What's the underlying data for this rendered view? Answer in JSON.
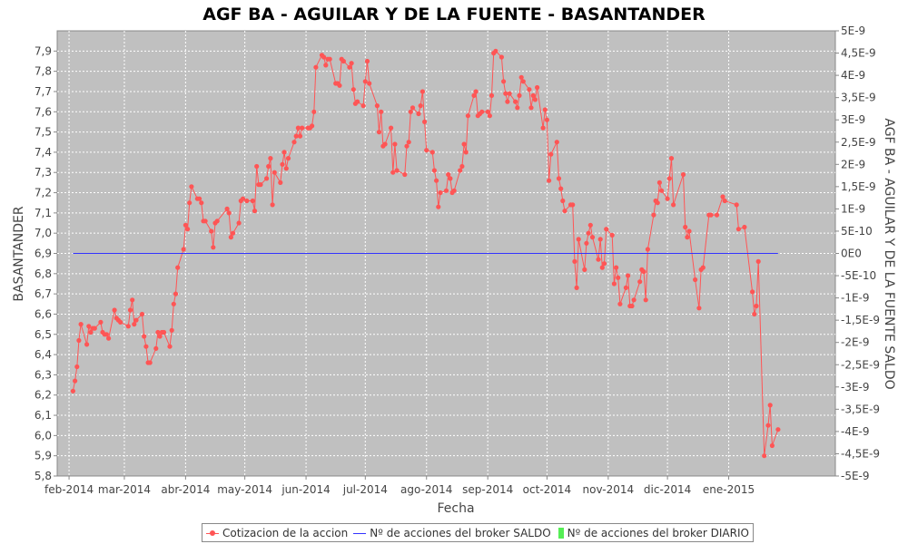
{
  "chart_data": {
    "type": "line",
    "title": "AGF BA - AGUILAR Y DE LA FUENTE - BASANTANDER",
    "xlabel": "Fecha",
    "ylabel": "BASANTANDER",
    "y2label": "AGF BA - AGUILAR Y DE LA FUENTE SALDO",
    "ylim": [
      5.8,
      8.0
    ],
    "y2lim": [
      -5e-09,
      5e-09
    ],
    "xlim": [
      "2014-01-26",
      "2015-02-24"
    ],
    "grid": true,
    "legend_position": "bottom",
    "x_ticks": [
      {
        "date": "2014-02-01",
        "label": "feb-2014"
      },
      {
        "date": "2014-03-01",
        "label": "mar-2014"
      },
      {
        "date": "2014-04-01",
        "label": "abr-2014"
      },
      {
        "date": "2014-05-01",
        "label": "may-2014"
      },
      {
        "date": "2014-06-01",
        "label": "jun-2014"
      },
      {
        "date": "2014-07-01",
        "label": "jul-2014"
      },
      {
        "date": "2014-08-01",
        "label": "ago-2014"
      },
      {
        "date": "2014-09-01",
        "label": "sep-2014"
      },
      {
        "date": "2014-10-01",
        "label": "oct-2014"
      },
      {
        "date": "2014-11-01",
        "label": "nov-2014"
      },
      {
        "date": "2014-12-01",
        "label": "dic-2014"
      },
      {
        "date": "2015-01-01",
        "label": "ene-2015"
      }
    ],
    "y_ticks": [
      "7,9",
      "7,8",
      "7,7",
      "7,6",
      "7,5",
      "7,4",
      "7,3",
      "7,2",
      "7,1",
      "7,0",
      "6,9",
      "6,8",
      "6,7",
      "6,6",
      "6,5",
      "6,4",
      "6,3",
      "6,2",
      "6,1",
      "6,0",
      "5,9",
      "5,8"
    ],
    "y2_ticks": [
      "5E-9",
      "4,5E-9",
      "4E-9",
      "3,5E-9",
      "3E-9",
      "2,5E-9",
      "2E-9",
      "1,5E-9",
      "1E-9",
      "5E-10",
      "0E0",
      "-5E-10",
      "-1E-9",
      "-1,5E-9",
      "-2E-9",
      "-2,5E-9",
      "-3E-9",
      "-3,5E-9",
      "-4E-9",
      "-4,5E-9",
      "-5E-9"
    ],
    "series": [
      {
        "name": "Cotizacion de la accion",
        "color": "#ff5555",
        "axis": "left",
        "points": [
          [
            "2014-02-03",
            6.22
          ],
          [
            "2014-02-04",
            6.27
          ],
          [
            "2014-02-05",
            6.34
          ],
          [
            "2014-02-06",
            6.47
          ],
          [
            "2014-02-07",
            6.55
          ],
          [
            "2014-02-10",
            6.45
          ],
          [
            "2014-02-11",
            6.54
          ],
          [
            "2014-02-12",
            6.51
          ],
          [
            "2014-02-13",
            6.53
          ],
          [
            "2014-02-14",
            6.53
          ],
          [
            "2014-02-17",
            6.56
          ],
          [
            "2014-02-18",
            6.51
          ],
          [
            "2014-02-19",
            6.5
          ],
          [
            "2014-02-20",
            6.5
          ],
          [
            "2014-02-21",
            6.48
          ],
          [
            "2014-02-24",
            6.62
          ],
          [
            "2014-02-25",
            6.58
          ],
          [
            "2014-02-26",
            6.57
          ],
          [
            "2014-02-27",
            6.56
          ],
          [
            "2014-03-03",
            6.54
          ],
          [
            "2014-03-04",
            6.62
          ],
          [
            "2014-03-05",
            6.67
          ],
          [
            "2014-03-06",
            6.55
          ],
          [
            "2014-03-07",
            6.57
          ],
          [
            "2014-03-10",
            6.6
          ],
          [
            "2014-03-11",
            6.49
          ],
          [
            "2014-03-12",
            6.44
          ],
          [
            "2014-03-13",
            6.36
          ],
          [
            "2014-03-14",
            6.36
          ],
          [
            "2014-03-17",
            6.43
          ],
          [
            "2014-03-18",
            6.51
          ],
          [
            "2014-03-19",
            6.49
          ],
          [
            "2014-03-20",
            6.51
          ],
          [
            "2014-03-21",
            6.51
          ],
          [
            "2014-03-24",
            6.44
          ],
          [
            "2014-03-25",
            6.52
          ],
          [
            "2014-03-26",
            6.65
          ],
          [
            "2014-03-27",
            6.7
          ],
          [
            "2014-03-28",
            6.83
          ],
          [
            "2014-03-31",
            6.92
          ],
          [
            "2014-04-01",
            7.04
          ],
          [
            "2014-04-02",
            7.02
          ],
          [
            "2014-04-03",
            7.15
          ],
          [
            "2014-04-04",
            7.23
          ],
          [
            "2014-04-07",
            7.17
          ],
          [
            "2014-04-08",
            7.17
          ],
          [
            "2014-04-09",
            7.15
          ],
          [
            "2014-04-10",
            7.06
          ],
          [
            "2014-04-11",
            7.06
          ],
          [
            "2014-04-14",
            7.01
          ],
          [
            "2014-04-15",
            6.93
          ],
          [
            "2014-04-16",
            7.05
          ],
          [
            "2014-04-17",
            7.06
          ],
          [
            "2014-04-22",
            7.12
          ],
          [
            "2014-04-23",
            7.1
          ],
          [
            "2014-04-24",
            6.98
          ],
          [
            "2014-04-25",
            7.0
          ],
          [
            "2014-04-28",
            7.05
          ],
          [
            "2014-04-29",
            7.16
          ],
          [
            "2014-04-30",
            7.17
          ],
          [
            "2014-05-02",
            7.16
          ],
          [
            "2014-05-05",
            7.16
          ],
          [
            "2014-05-06",
            7.11
          ],
          [
            "2014-05-07",
            7.33
          ],
          [
            "2014-05-08",
            7.24
          ],
          [
            "2014-05-09",
            7.24
          ],
          [
            "2014-05-12",
            7.27
          ],
          [
            "2014-05-13",
            7.33
          ],
          [
            "2014-05-14",
            7.37
          ],
          [
            "2014-05-15",
            7.14
          ],
          [
            "2014-05-16",
            7.3
          ],
          [
            "2014-05-19",
            7.25
          ],
          [
            "2014-05-20",
            7.34
          ],
          [
            "2014-05-21",
            7.4
          ],
          [
            "2014-05-22",
            7.32
          ],
          [
            "2014-05-23",
            7.37
          ],
          [
            "2014-05-26",
            7.45
          ],
          [
            "2014-05-27",
            7.48
          ],
          [
            "2014-05-28",
            7.52
          ],
          [
            "2014-05-29",
            7.48
          ],
          [
            "2014-05-30",
            7.52
          ],
          [
            "2014-06-02",
            7.52
          ],
          [
            "2014-06-03",
            7.52
          ],
          [
            "2014-06-04",
            7.53
          ],
          [
            "2014-06-05",
            7.6
          ],
          [
            "2014-06-06",
            7.82
          ],
          [
            "2014-06-09",
            7.88
          ],
          [
            "2014-06-10",
            7.87
          ],
          [
            "2014-06-11",
            7.83
          ],
          [
            "2014-06-12",
            7.86
          ],
          [
            "2014-06-13",
            7.86
          ],
          [
            "2014-06-16",
            7.74
          ],
          [
            "2014-06-17",
            7.74
          ],
          [
            "2014-06-18",
            7.73
          ],
          [
            "2014-06-19",
            7.86
          ],
          [
            "2014-06-20",
            7.85
          ],
          [
            "2014-06-23",
            7.82
          ],
          [
            "2014-06-24",
            7.84
          ],
          [
            "2014-06-25",
            7.71
          ],
          [
            "2014-06-26",
            7.64
          ],
          [
            "2014-06-27",
            7.65
          ],
          [
            "2014-06-30",
            7.63
          ],
          [
            "2014-07-01",
            7.75
          ],
          [
            "2014-07-02",
            7.85
          ],
          [
            "2014-07-03",
            7.74
          ],
          [
            "2014-07-07",
            7.63
          ],
          [
            "2014-07-08",
            7.5
          ],
          [
            "2014-07-09",
            7.6
          ],
          [
            "2014-07-10",
            7.43
          ],
          [
            "2014-07-11",
            7.44
          ],
          [
            "2014-07-14",
            7.52
          ],
          [
            "2014-07-15",
            7.3
          ],
          [
            "2014-07-16",
            7.44
          ],
          [
            "2014-07-17",
            7.31
          ],
          [
            "2014-07-21",
            7.29
          ],
          [
            "2014-07-22",
            7.43
          ],
          [
            "2014-07-23",
            7.45
          ],
          [
            "2014-07-24",
            7.6
          ],
          [
            "2014-07-25",
            7.62
          ],
          [
            "2014-07-28",
            7.59
          ],
          [
            "2014-07-29",
            7.63
          ],
          [
            "2014-07-30",
            7.7
          ],
          [
            "2014-07-31",
            7.55
          ],
          [
            "2014-08-01",
            7.41
          ],
          [
            "2014-08-04",
            7.4
          ],
          [
            "2014-08-05",
            7.31
          ],
          [
            "2014-08-06",
            7.26
          ],
          [
            "2014-08-07",
            7.13
          ],
          [
            "2014-08-08",
            7.2
          ],
          [
            "2014-08-11",
            7.21
          ],
          [
            "2014-08-12",
            7.29
          ],
          [
            "2014-08-13",
            7.27
          ],
          [
            "2014-08-14",
            7.2
          ],
          [
            "2014-08-15",
            7.21
          ],
          [
            "2014-08-18",
            7.31
          ],
          [
            "2014-08-19",
            7.33
          ],
          [
            "2014-08-20",
            7.44
          ],
          [
            "2014-08-21",
            7.4
          ],
          [
            "2014-08-22",
            7.58
          ],
          [
            "2014-08-25",
            7.68
          ],
          [
            "2014-08-26",
            7.7
          ],
          [
            "2014-08-27",
            7.58
          ],
          [
            "2014-08-28",
            7.59
          ],
          [
            "2014-08-29",
            7.6
          ],
          [
            "2014-09-01",
            7.6
          ],
          [
            "2014-09-02",
            7.58
          ],
          [
            "2014-09-03",
            7.68
          ],
          [
            "2014-09-04",
            7.89
          ],
          [
            "2014-09-05",
            7.9
          ],
          [
            "2014-09-08",
            7.87
          ],
          [
            "2014-09-09",
            7.75
          ],
          [
            "2014-09-10",
            7.69
          ],
          [
            "2014-09-11",
            7.65
          ],
          [
            "2014-09-12",
            7.69
          ],
          [
            "2014-09-15",
            7.65
          ],
          [
            "2014-09-16",
            7.62
          ],
          [
            "2014-09-17",
            7.68
          ],
          [
            "2014-09-18",
            7.77
          ],
          [
            "2014-09-19",
            7.75
          ],
          [
            "2014-09-22",
            7.71
          ],
          [
            "2014-09-23",
            7.62
          ],
          [
            "2014-09-24",
            7.68
          ],
          [
            "2014-09-25",
            7.66
          ],
          [
            "2014-09-26",
            7.72
          ],
          [
            "2014-09-29",
            7.52
          ],
          [
            "2014-09-30",
            7.61
          ],
          [
            "2014-10-01",
            7.56
          ],
          [
            "2014-10-02",
            7.26
          ],
          [
            "2014-10-03",
            7.39
          ],
          [
            "2014-10-06",
            7.45
          ],
          [
            "2014-10-07",
            7.27
          ],
          [
            "2014-10-08",
            7.22
          ],
          [
            "2014-10-09",
            7.16
          ],
          [
            "2014-10-10",
            7.11
          ],
          [
            "2014-10-13",
            7.14
          ],
          [
            "2014-10-14",
            7.14
          ],
          [
            "2014-10-15",
            6.86
          ],
          [
            "2014-10-16",
            6.73
          ],
          [
            "2014-10-17",
            6.97
          ],
          [
            "2014-10-20",
            6.82
          ],
          [
            "2014-10-21",
            6.95
          ],
          [
            "2014-10-22",
            7.0
          ],
          [
            "2014-10-23",
            7.04
          ],
          [
            "2014-10-24",
            6.98
          ],
          [
            "2014-10-27",
            6.87
          ],
          [
            "2014-10-28",
            6.97
          ],
          [
            "2014-10-29",
            6.83
          ],
          [
            "2014-10-30",
            6.85
          ],
          [
            "2014-10-31",
            7.02
          ],
          [
            "2014-11-03",
            6.99
          ],
          [
            "2014-11-04",
            6.75
          ],
          [
            "2014-11-05",
            6.83
          ],
          [
            "2014-11-06",
            6.78
          ],
          [
            "2014-11-07",
            6.65
          ],
          [
            "2014-11-10",
            6.73
          ],
          [
            "2014-11-11",
            6.79
          ],
          [
            "2014-11-12",
            6.64
          ],
          [
            "2014-11-13",
            6.64
          ],
          [
            "2014-11-14",
            6.67
          ],
          [
            "2014-11-17",
            6.76
          ],
          [
            "2014-11-18",
            6.82
          ],
          [
            "2014-11-19",
            6.81
          ],
          [
            "2014-11-20",
            6.67
          ],
          [
            "2014-11-21",
            6.92
          ],
          [
            "2014-11-24",
            7.09
          ],
          [
            "2014-11-25",
            7.16
          ],
          [
            "2014-11-26",
            7.15
          ],
          [
            "2014-11-27",
            7.25
          ],
          [
            "2014-11-28",
            7.21
          ],
          [
            "2014-12-01",
            7.17
          ],
          [
            "2014-12-02",
            7.27
          ],
          [
            "2014-12-03",
            7.37
          ],
          [
            "2014-12-04",
            7.14
          ],
          [
            "2014-12-09",
            7.29
          ],
          [
            "2014-12-10",
            7.03
          ],
          [
            "2014-12-11",
            6.98
          ],
          [
            "2014-12-12",
            7.01
          ],
          [
            "2014-12-15",
            6.77
          ],
          [
            "2014-12-17",
            6.63
          ],
          [
            "2014-12-18",
            6.82
          ],
          [
            "2014-12-19",
            6.83
          ],
          [
            "2014-12-22",
            7.09
          ],
          [
            "2014-12-23",
            7.09
          ],
          [
            "2014-12-26",
            7.09
          ],
          [
            "2014-12-29",
            7.18
          ],
          [
            "2014-12-30",
            7.16
          ],
          [
            "2015-01-05",
            7.14
          ],
          [
            "2015-01-06",
            7.02
          ],
          [
            "2015-01-09",
            7.03
          ],
          [
            "2015-01-13",
            6.71
          ],
          [
            "2015-01-14",
            6.6
          ],
          [
            "2015-01-15",
            6.64
          ],
          [
            "2015-01-16",
            6.86
          ],
          [
            "2015-01-19",
            5.9
          ],
          [
            "2015-01-21",
            6.05
          ],
          [
            "2015-01-22",
            6.15
          ],
          [
            "2015-01-23",
            5.95
          ],
          [
            "2015-01-26",
            6.03
          ]
        ]
      },
      {
        "name": "Nº de acciones del broker SALDO",
        "color": "#3333ff",
        "axis": "right",
        "points": [
          [
            "2014-02-03",
            0
          ],
          [
            "2015-01-26",
            0
          ]
        ]
      },
      {
        "name": "Nº de acciones del broker DIARIO",
        "color": "#55ee55",
        "axis": "right",
        "points": []
      }
    ]
  }
}
